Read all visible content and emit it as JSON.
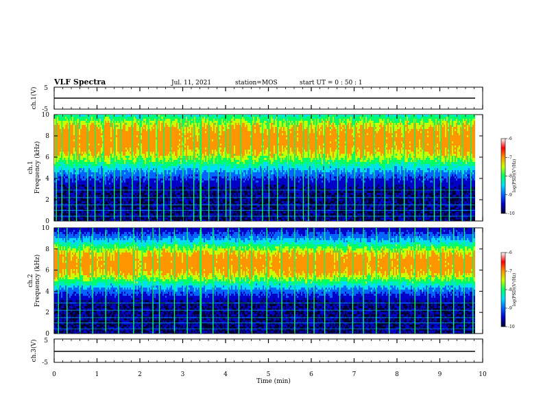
{
  "header": {
    "title": "VLF Spectra",
    "date": "Jul. 11, 2021",
    "station": "station=MOS",
    "start_ut": "start UT =  0 : 50 : 1"
  },
  "chart_data": [
    {
      "type": "line",
      "panel": "ch1-waveform",
      "ylabel": "ch.1(V)",
      "y_ticks": [
        "5",
        "-5"
      ],
      "ylim": [
        -5,
        5
      ],
      "xlim": [
        0,
        10
      ],
      "level": 0
    },
    {
      "type": "heatmap",
      "panel": "ch1-spectrogram",
      "ylabel_channel": "ch.1",
      "ylabel": "Frequency (kHz)",
      "y_ticks": [
        "0",
        "2",
        "4",
        "6",
        "8",
        "10"
      ],
      "ylim": [
        0,
        10
      ],
      "xlim": [
        0,
        9.8
      ],
      "colorbar": {
        "label": "log(PSD)(V²/Hz)",
        "ticks": [
          "-6",
          "-7",
          "-8",
          "-9",
          "-10"
        ],
        "range": [
          -10,
          -6
        ]
      },
      "band_center_khz": 7.6,
      "band_width_khz": 3.0,
      "pattern": "strong emissions in upper band (8-9 kHz) with frequent vertical sferic spikes"
    },
    {
      "type": "heatmap",
      "panel": "ch2-spectrogram",
      "ylabel_channel": "ch.2",
      "ylabel": "Frequency (kHz)",
      "y_ticks": [
        "0",
        "2",
        "4",
        "6",
        "8",
        "10"
      ],
      "ylim": [
        0,
        10
      ],
      "xlim": [
        0,
        9.8
      ],
      "colorbar": {
        "label": "log(PSD)(V²/Hz)",
        "ticks": [
          "-6",
          "-7",
          "-8",
          "-9",
          "-10"
        ],
        "range": [
          -10,
          -6
        ]
      },
      "band_center_khz": 6.6,
      "band_width_khz": 2.4,
      "pattern": "broad intense band centered near 6-7 kHz, background below 4 kHz"
    },
    {
      "type": "line",
      "panel": "ch3-waveform",
      "ylabel": "ch.3(V)",
      "y_ticks": [
        "5",
        "-5"
      ],
      "ylim": [
        -5,
        5
      ],
      "xlim": [
        0,
        10
      ],
      "level": 0
    }
  ],
  "x_axis": {
    "label": "Time (min)",
    "ticks": [
      "0",
      "1",
      "2",
      "3",
      "4",
      "5",
      "6",
      "7",
      "8",
      "9",
      "10"
    ]
  },
  "colors": {
    "palette": [
      "#000032",
      "#0000c8",
      "#0064ff",
      "#00dcff",
      "#00ff64",
      "#c8ff00",
      "#ff9600",
      "#ff0000",
      "#ffffff"
    ]
  }
}
